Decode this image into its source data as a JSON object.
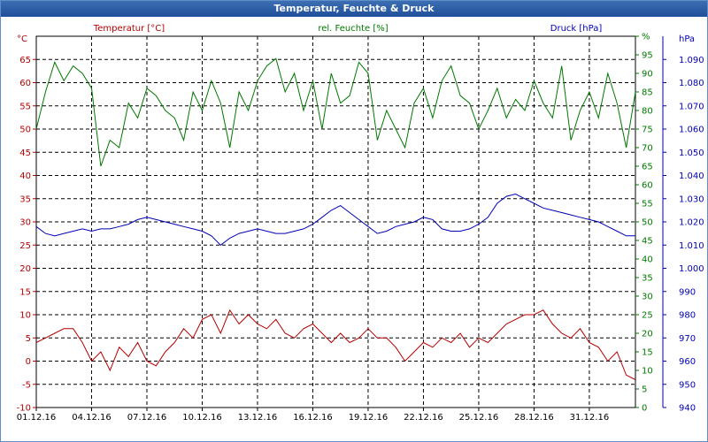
{
  "window": {
    "title": "Temperatur, Feuchte & Druck"
  },
  "colors": {
    "temperature": "#b40000",
    "humidity": "#007800",
    "pressure": "#0000b4",
    "grid": "#000000",
    "frame": "#5f8ec9"
  },
  "chart_data": {
    "type": "line",
    "title": "Temperatur, Feuchte & Druck",
    "legend": {
      "temperature": "Temperatur [°C]",
      "humidity": "rel. Feuchte [%]",
      "pressure": "Druck [hPa]"
    },
    "axis_units": {
      "temperature": "°C",
      "humidity": "%",
      "pressure": "hPa"
    },
    "x_ticks": [
      "01.12.16",
      "04.12.16",
      "07.12.16",
      "10.12.16",
      "13.12.16",
      "16.12.16",
      "19.12.16",
      "22.12.16",
      "25.12.16",
      "28.12.16",
      "31.12.16"
    ],
    "x_range_days": [
      0,
      32.5
    ],
    "axes": {
      "temperature": {
        "range": [
          -10,
          70
        ],
        "ticks": [
          "-10",
          "-5",
          "0",
          "5",
          "10",
          "15",
          "20",
          "25",
          "30",
          "35",
          "40",
          "45",
          "50",
          "55",
          "60",
          "65"
        ]
      },
      "humidity": {
        "range": [
          0,
          100
        ],
        "ticks": [
          "0",
          "5",
          "10",
          "15",
          "20",
          "25",
          "30",
          "35",
          "40",
          "45",
          "50",
          "55",
          "60",
          "65",
          "70",
          "75",
          "80",
          "85",
          "90",
          "95",
          "%"
        ]
      },
      "pressure": {
        "range": [
          940,
          1100
        ],
        "ticks": [
          "940",
          "950",
          "960",
          "970",
          "980",
          "990",
          "1.000",
          "1.010",
          "1.020",
          "1.030",
          "1.040",
          "1.050",
          "1.060",
          "1.070",
          "1.080",
          "1.090"
        ]
      }
    },
    "series": [
      {
        "name": "Temperatur [°C]",
        "key": "temperature",
        "axis": "temperature",
        "x": [
          0,
          0.5,
          1,
          1.5,
          2,
          2.5,
          3,
          3.5,
          4,
          4.5,
          5,
          5.5,
          6,
          6.5,
          7,
          7.5,
          8,
          8.5,
          9,
          9.5,
          10,
          10.5,
          11,
          11.5,
          12,
          12.5,
          13,
          13.5,
          14,
          14.5,
          15,
          15.5,
          16,
          16.5,
          17,
          17.5,
          18,
          18.5,
          19,
          19.5,
          20,
          20.5,
          21,
          21.5,
          22,
          22.5,
          23,
          23.5,
          24,
          24.5,
          25,
          25.5,
          26,
          26.5,
          27,
          27.5,
          28,
          28.5,
          29,
          29.5,
          30,
          30.5,
          31,
          31.5,
          32,
          32.5
        ],
        "values": [
          4,
          5,
          6,
          7,
          7,
          4,
          0,
          2,
          -2,
          3,
          1,
          4,
          0,
          -1,
          2,
          4,
          7,
          5,
          9,
          10,
          6,
          11,
          8,
          10,
          8,
          7,
          9,
          6,
          5,
          7,
          8,
          6,
          4,
          6,
          4,
          5,
          7,
          5,
          5,
          3,
          0,
          2,
          4,
          3,
          5,
          4,
          6,
          3,
          5,
          4,
          6,
          8,
          9,
          10,
          10,
          11,
          8,
          6,
          5,
          7,
          4,
          3,
          0,
          2,
          -3,
          -4
        ]
      },
      {
        "name": "rel. Feuchte [%]",
        "key": "humidity",
        "axis": "humidity",
        "x": [
          0,
          0.5,
          1,
          1.5,
          2,
          2.5,
          3,
          3.5,
          4,
          4.5,
          5,
          5.5,
          6,
          6.5,
          7,
          7.5,
          8,
          8.5,
          9,
          9.5,
          10,
          10.5,
          11,
          11.5,
          12,
          12.5,
          13,
          13.5,
          14,
          14.5,
          15,
          15.5,
          16,
          16.5,
          17,
          17.5,
          18,
          18.5,
          19,
          19.5,
          20,
          20.5,
          21,
          21.5,
          22,
          22.5,
          23,
          23.5,
          24,
          24.5,
          25,
          25.5,
          26,
          26.5,
          27,
          27.5,
          28,
          28.5,
          29,
          29.5,
          30,
          30.5,
          31,
          31.5,
          32,
          32.5
        ],
        "values": [
          75,
          85,
          93,
          88,
          92,
          90,
          86,
          65,
          72,
          70,
          82,
          78,
          86,
          84,
          80,
          78,
          72,
          85,
          80,
          88,
          82,
          70,
          85,
          80,
          88,
          92,
          94,
          85,
          90,
          80,
          88,
          75,
          90,
          82,
          84,
          93,
          90,
          72,
          80,
          75,
          70,
          82,
          86,
          78,
          88,
          92,
          84,
          82,
          75,
          80,
          86,
          78,
          83,
          80,
          88,
          82,
          78,
          92,
          72,
          80,
          85,
          78,
          90,
          82,
          70,
          85
        ]
      },
      {
        "name": "Druck [hPa]",
        "key": "pressure",
        "axis": "pressure",
        "x": [
          0,
          0.5,
          1,
          1.5,
          2,
          2.5,
          3,
          3.5,
          4,
          4.5,
          5,
          5.5,
          6,
          6.5,
          7,
          7.5,
          8,
          8.5,
          9,
          9.5,
          10,
          10.5,
          11,
          11.5,
          12,
          12.5,
          13,
          13.5,
          14,
          14.5,
          15,
          15.5,
          16,
          16.5,
          17,
          17.5,
          18,
          18.5,
          19,
          19.5,
          20,
          20.5,
          21,
          21.5,
          22,
          22.5,
          23,
          23.5,
          24,
          24.5,
          25,
          25.5,
          26,
          26.5,
          27,
          27.5,
          28,
          28.5,
          29,
          29.5,
          30,
          30.5,
          31,
          31.5,
          32,
          32.5
        ],
        "values": [
          1018,
          1015,
          1014,
          1015,
          1016,
          1017,
          1016,
          1017,
          1017,
          1018,
          1019,
          1021,
          1022,
          1021,
          1020,
          1019,
          1018,
          1017,
          1016,
          1014,
          1010,
          1013,
          1015,
          1016,
          1017,
          1016,
          1015,
          1015,
          1016,
          1017,
          1019,
          1022,
          1025,
          1027,
          1024,
          1021,
          1018,
          1015,
          1016,
          1018,
          1019,
          1020,
          1022,
          1021,
          1017,
          1016,
          1016,
          1017,
          1019,
          1022,
          1028,
          1031,
          1032,
          1030,
          1028,
          1026,
          1025,
          1024,
          1023,
          1022,
          1021,
          1020,
          1018,
          1016,
          1014,
          1014
        ]
      }
    ]
  }
}
